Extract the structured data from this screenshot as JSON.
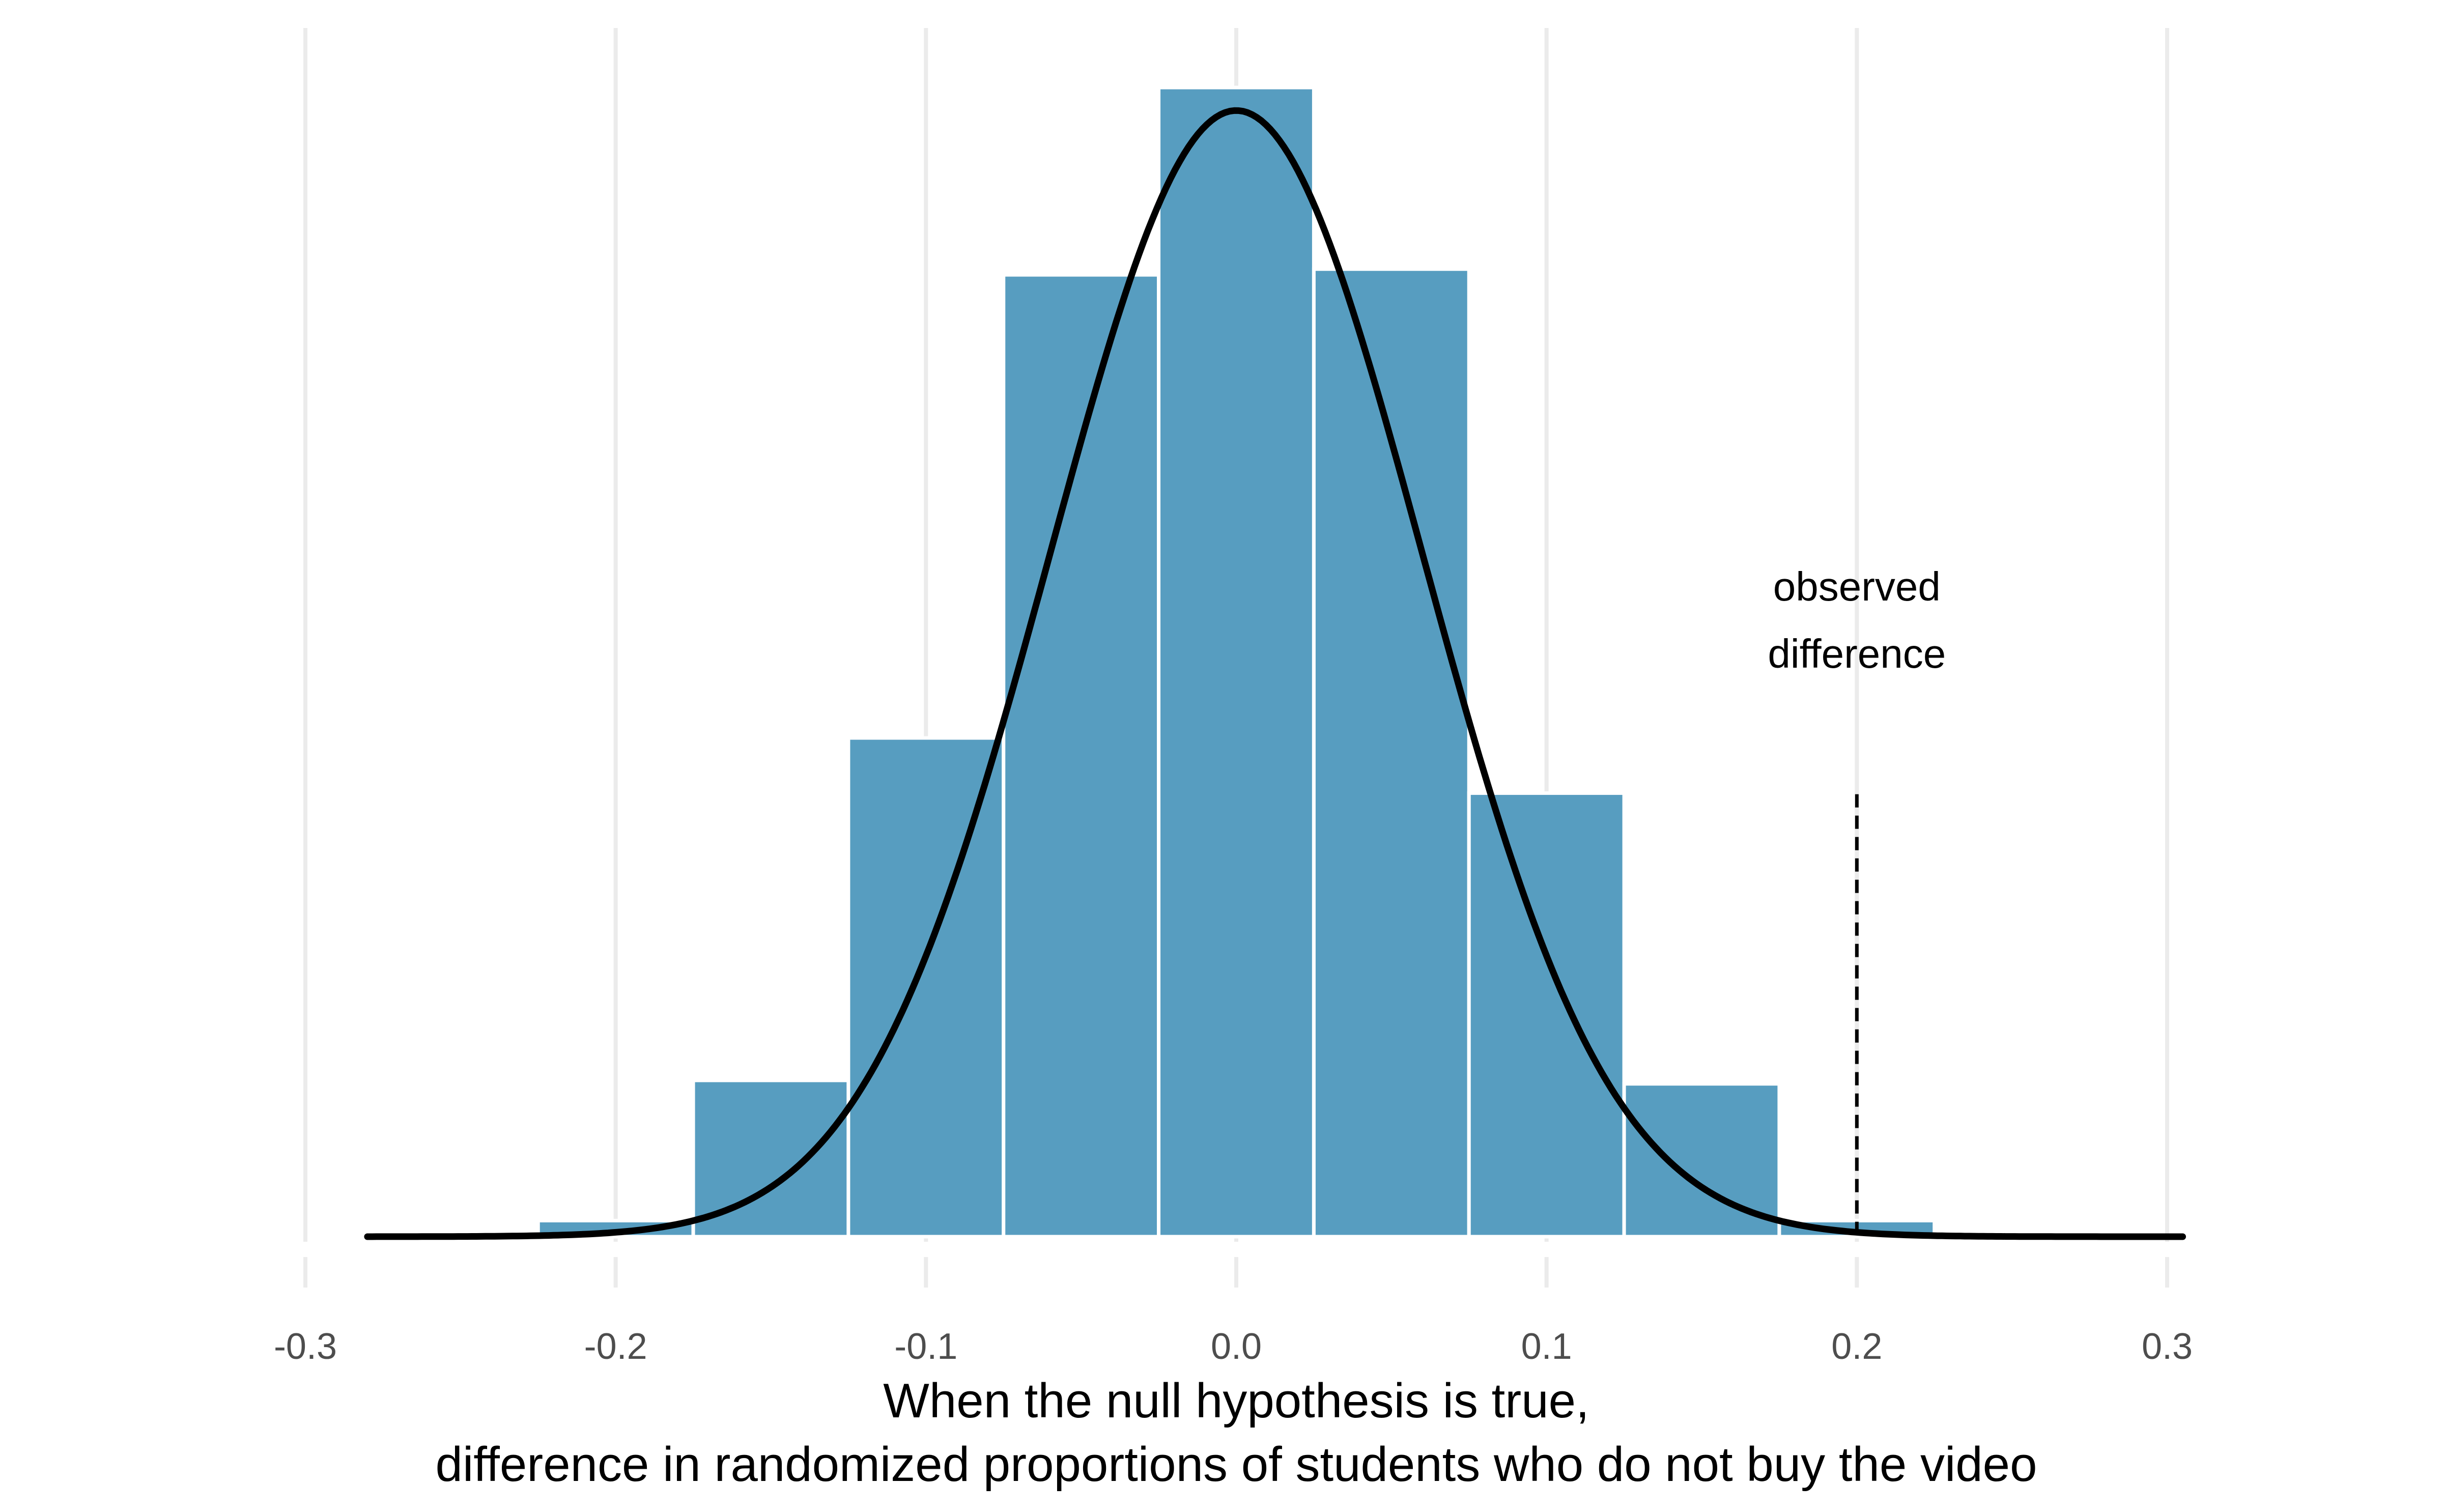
{
  "chart_data": {
    "type": "bar",
    "subtype": "histogram",
    "xlabel_lines": [
      "When the null hypothesis is true,",
      "difference in randomized proportions of students who do not buy the video"
    ],
    "ylabel": "",
    "y_axis_shown": false,
    "xlim": [
      -0.3,
      0.3
    ],
    "x_ticks": [
      -0.3,
      -0.2,
      -0.1,
      0.0,
      0.1,
      0.2,
      0.3
    ],
    "x_tick_labels": [
      "-0.3",
      "-0.2",
      "-0.1",
      "0.0",
      "0.1",
      "0.2",
      "0.3"
    ],
    "bin_width": 0.05,
    "bins": [
      {
        "x0": -0.275,
        "x1": -0.225,
        "count": 0.3
      },
      {
        "x0": -0.225,
        "x1": -0.175,
        "count": 1.4
      },
      {
        "x0": -0.175,
        "x1": -0.125,
        "count": 13.6
      },
      {
        "x0": -0.125,
        "x1": -0.075,
        "count": 43.4
      },
      {
        "x0": -0.075,
        "x1": -0.025,
        "count": 83.7
      },
      {
        "x0": -0.025,
        "x1": 0.025,
        "count": 100
      },
      {
        "x0": 0.025,
        "x1": 0.075,
        "count": 84.2
      },
      {
        "x0": 0.075,
        "x1": 0.125,
        "count": 38.6
      },
      {
        "x0": 0.125,
        "x1": 0.175,
        "count": 13.3
      },
      {
        "x0": 0.175,
        "x1": 0.225,
        "count": 1.4
      },
      {
        "x0": 0.225,
        "x1": 0.275,
        "count": 0.3
      }
    ],
    "ylim": [
      0,
      100
    ],
    "normal_curve": {
      "mean": 0,
      "sd": 0.06,
      "peak": 98,
      "x_range": [
        -0.28,
        0.305
      ]
    },
    "reference_line": {
      "x": 0.2,
      "y_top": 38.5,
      "style": "dashed"
    },
    "annotation": {
      "lines": [
        "observed",
        "difference"
      ],
      "x": 0.2
    },
    "grid": {
      "vertical_major": true,
      "horizontal": false
    },
    "colors": {
      "bar_fill": "#579dc0",
      "bar_edge": "#ffffff",
      "curve": "#000000",
      "grid": "#ebebeb",
      "tick_text": "#4d4d4d",
      "label_text": "#000000"
    }
  }
}
